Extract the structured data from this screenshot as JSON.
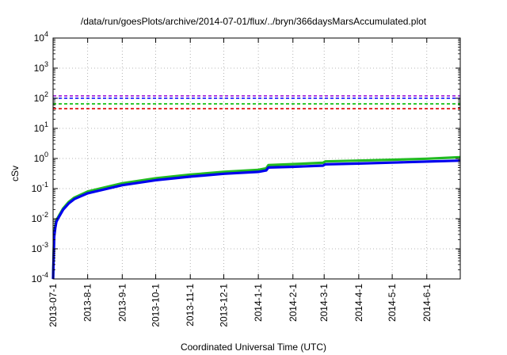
{
  "chart_data": {
    "type": "line",
    "title": "/data/run/goesPlots/archive/2014-07-01/flux/../bryn/366daysMarsAccumulated.plot",
    "xlabel": "Coordinated Universal Time (UTC)",
    "ylabel": "cSv",
    "y_scale": "log",
    "ylim": [
      0.0001,
      10000
    ],
    "xlim": [
      "2013-07-01",
      "2014-07-01"
    ],
    "x_ticks": [
      "2013-07-1",
      "2013-8-1",
      "2013-9-1",
      "2013-10-1",
      "2013-11-1",
      "2013-12-1",
      "2014-1-1",
      "2014-2-1",
      "2014-3-1",
      "2014-4-1",
      "2014-5-1",
      "2014-6-1"
    ],
    "y_ticks": [
      {
        "base": "10",
        "exp": "-4"
      },
      {
        "base": "10",
        "exp": "-3"
      },
      {
        "base": "10",
        "exp": "-2"
      },
      {
        "base": "10",
        "exp": "-1"
      },
      {
        "base": "10",
        "exp": "0"
      },
      {
        "base": "10",
        "exp": "1"
      },
      {
        "base": "10",
        "exp": "2"
      },
      {
        "base": "10",
        "exp": "3"
      },
      {
        "base": "10",
        "exp": "4"
      }
    ],
    "grid": true,
    "thresholds": [
      {
        "value": 120,
        "color": "#9400d3",
        "style": "dashed"
      },
      {
        "value": 100,
        "color": "#0000ff",
        "style": "dashed"
      },
      {
        "value": 65,
        "color": "#00bb00",
        "style": "dashed"
      },
      {
        "value": 45,
        "color": "#dd0000",
        "style": "dashed"
      }
    ],
    "series": [
      {
        "color": "#22bb22",
        "x": [
          "2013-07-01",
          "2013-07-02",
          "2013-07-03",
          "2013-07-04",
          "2013-07-06",
          "2013-07-10",
          "2013-07-15",
          "2013-07-20",
          "2013-08-01",
          "2013-09-01",
          "2013-10-01",
          "2013-11-01",
          "2013-12-01",
          "2014-01-01",
          "2014-01-08",
          "2014-01-10",
          "2014-02-01",
          "2014-02-28",
          "2014-03-02",
          "2014-04-01",
          "2014-05-01",
          "2014-06-01",
          "2014-07-01"
        ],
        "values": [
          0.0001,
          0.003,
          0.006,
          0.009,
          0.012,
          0.022,
          0.036,
          0.05,
          0.08,
          0.15,
          0.22,
          0.29,
          0.36,
          0.42,
          0.47,
          0.6,
          0.65,
          0.72,
          0.8,
          0.85,
          0.91,
          0.98,
          1.1
        ]
      },
      {
        "color": "#0000ee",
        "x": [
          "2013-07-01",
          "2013-07-02",
          "2013-07-03",
          "2013-07-04",
          "2013-07-06",
          "2013-07-10",
          "2013-07-15",
          "2013-07-20",
          "2013-08-01",
          "2013-09-01",
          "2013-10-01",
          "2013-11-01",
          "2013-12-01",
          "2014-01-01",
          "2014-01-08",
          "2014-01-10",
          "2014-02-01",
          "2014-02-28",
          "2014-03-02",
          "2014-04-01",
          "2014-05-01",
          "2014-06-01",
          "2014-07-01"
        ],
        "values": [
          0.0001,
          0.0025,
          0.005,
          0.008,
          0.011,
          0.02,
          0.032,
          0.045,
          0.07,
          0.13,
          0.19,
          0.25,
          0.31,
          0.36,
          0.4,
          0.5,
          0.53,
          0.58,
          0.64,
          0.68,
          0.73,
          0.79,
          0.85
        ]
      }
    ]
  }
}
